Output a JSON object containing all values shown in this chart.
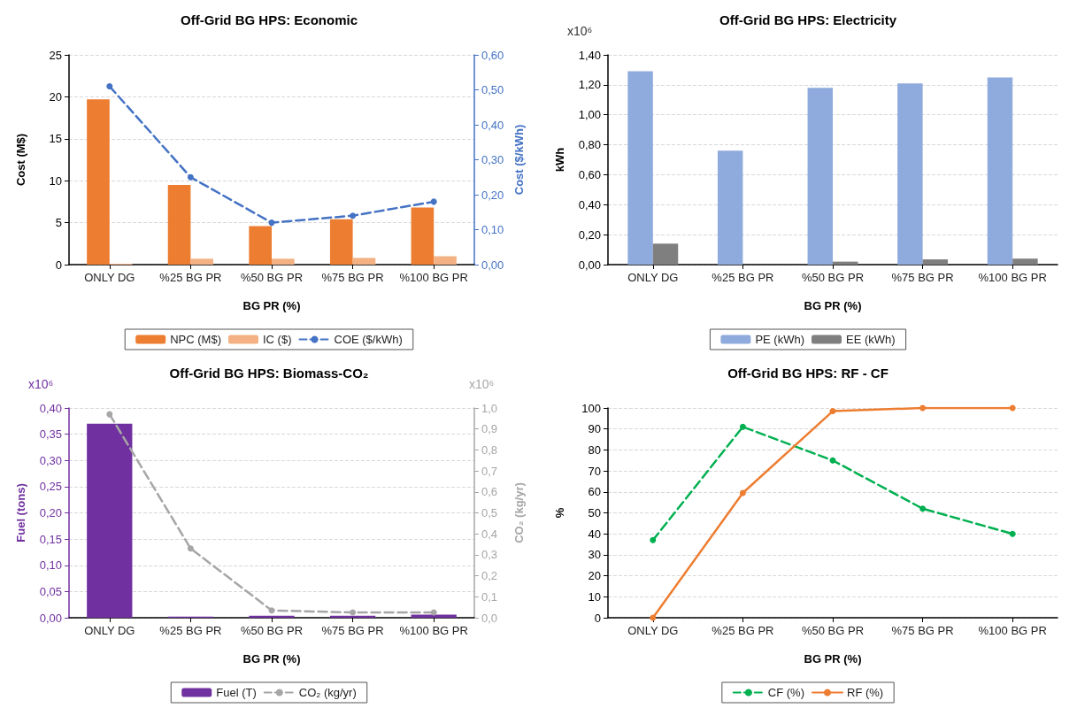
{
  "chart_data": [
    {
      "type": "bar",
      "title": "Off-Grid BG HPS: Economic",
      "xlabel": "BG PR (%)",
      "ylabel": "Cost (M$)",
      "y2label": "Cost ($/kWh)",
      "categories": [
        "ONLY DG",
        "%25 BG PR",
        "%50 BG PR",
        "%75 BG PR",
        "%100 BG PR"
      ],
      "series": [
        {
          "name": "NPC (M$)",
          "color": "#ed7d31",
          "values": [
            19.7,
            9.5,
            4.6,
            5.4,
            6.8
          ]
        },
        {
          "name": "IC ($)",
          "color": "#f4b183",
          "values": [
            0.1,
            0.7,
            0.7,
            0.8,
            1.0
          ]
        },
        {
          "name": "COE ($/kWh)",
          "type": "line",
          "axis": "y2",
          "color": "#4472c4",
          "line_style": "dashed",
          "values": [
            0.51,
            0.25,
            0.12,
            0.14,
            0.18
          ]
        }
      ],
      "ylim": [
        0,
        25
      ],
      "yticks": [
        0,
        5,
        10,
        15,
        20,
        25
      ],
      "y2lim": [
        0,
        0.6
      ],
      "y2ticks": [
        {
          "value": 0,
          "label": "0,00"
        },
        {
          "value": 0.1,
          "label": "0,10"
        },
        {
          "value": 0.2,
          "label": "0,20"
        },
        {
          "value": 0.3,
          "label": "0,30"
        },
        {
          "value": 0.4,
          "label": "0,40"
        },
        {
          "value": 0.5,
          "label": "0,50"
        },
        {
          "value": 0.6,
          "label": "0,60"
        }
      ],
      "grid": "y",
      "legend": "bottom",
      "marker": "circle"
    },
    {
      "type": "bar",
      "title": "Off-Grid BG HPS: Electricity",
      "xlabel": "BG PR (%)",
      "ylabel": "kWh",
      "annotations": [
        "x10⁶"
      ],
      "categories": [
        "ONLY DG",
        "%25 BG PR",
        "%50 BG PR",
        "%75 BG PR",
        "%100 BG PR"
      ],
      "series": [
        {
          "name": "PE (kWh)",
          "color": "#8faadc",
          "values": [
            1.29,
            0.76,
            1.18,
            1.21,
            1.25
          ]
        },
        {
          "name": "EE (kWh)",
          "color": "#7f7f7f",
          "values": [
            0.14,
            0,
            0.02,
            0.035,
            0.04
          ]
        }
      ],
      "ylim": [
        0,
        1.4
      ],
      "yticks": [
        {
          "value": 0,
          "label": "0,00"
        },
        {
          "value": 0.2,
          "label": "0,20"
        },
        {
          "value": 0.4,
          "label": "0,40"
        },
        {
          "value": 0.6,
          "label": "0,60"
        },
        {
          "value": 0.8,
          "label": "0,80"
        },
        {
          "value": 1.0,
          "label": "1,00"
        },
        {
          "value": 1.2,
          "label": "1,20"
        },
        {
          "value": 1.4,
          "label": "1,40"
        }
      ],
      "grid": "y",
      "legend": "bottom"
    },
    {
      "type": "bar",
      "title": "Off-Grid BG HPS: Biomass-CO₂",
      "xlabel": "BG PR (%)",
      "ylabel": "Fuel (tons)",
      "y2label": "CO₂ (kg/yr)",
      "annotations": [
        "x10⁶",
        "x10⁶"
      ],
      "categories": [
        "ONLY DG",
        "%25 BG PR",
        "%50 BG PR",
        "%75 BG PR",
        "%100 BG PR"
      ],
      "series": [
        {
          "name": "Fuel (T)",
          "color": "#7030a0",
          "values": [
            0.37,
            0.002,
            0.004,
            0.004,
            0.006
          ]
        },
        {
          "name": "CO₂ (kg/yr)",
          "type": "line",
          "axis": "y2",
          "color": "#a6a6a6",
          "line_style": "dashed",
          "values": [
            0.97,
            0.33,
            0.035,
            0.025,
            0.025
          ]
        }
      ],
      "ylim": [
        0,
        0.4
      ],
      "yticks": [
        {
          "value": 0,
          "label": "0,00"
        },
        {
          "value": 0.05,
          "label": "0,05"
        },
        {
          "value": 0.1,
          "label": "0,10"
        },
        {
          "value": 0.15,
          "label": "0,15"
        },
        {
          "value": 0.2,
          "label": "0,20"
        },
        {
          "value": 0.25,
          "label": "0,25"
        },
        {
          "value": 0.3,
          "label": "0,30"
        },
        {
          "value": 0.35,
          "label": "0,35"
        },
        {
          "value": 0.4,
          "label": "0,40"
        }
      ],
      "y2lim": [
        0,
        1.0
      ],
      "y2ticks": [
        {
          "value": 0,
          "label": "0,0"
        },
        {
          "value": 0.1,
          "label": "0,1"
        },
        {
          "value": 0.2,
          "label": "0,2"
        },
        {
          "value": 0.3,
          "label": "0,3"
        },
        {
          "value": 0.4,
          "label": "0,4"
        },
        {
          "value": 0.5,
          "label": "0,5"
        },
        {
          "value": 0.6,
          "label": "0,6"
        },
        {
          "value": 0.7,
          "label": "0,7"
        },
        {
          "value": 0.8,
          "label": "0,8"
        },
        {
          "value": 0.9,
          "label": "0,9"
        },
        {
          "value": 1.0,
          "label": "1,0"
        }
      ],
      "grid": "y",
      "legend": "bottom",
      "marker": "circle"
    },
    {
      "type": "line",
      "title": "Off-Grid BG HPS: RF - CF",
      "xlabel": "BG PR (%)",
      "ylabel": "%",
      "categories": [
        "ONLY DG",
        "%25 BG PR",
        "%50 BG PR",
        "%75 BG PR",
        "%100 BG PR"
      ],
      "series": [
        {
          "name": "CF (%)",
          "color": "#00b050",
          "line_style": "dashed",
          "values": [
            37,
            91,
            75,
            52,
            40
          ]
        },
        {
          "name": "RF (%)",
          "color": "#ed7d31",
          "line_style": "solid",
          "values": [
            0,
            59.5,
            98.5,
            100,
            100
          ]
        }
      ],
      "ylim": [
        0,
        100
      ],
      "yticks": [
        0,
        10,
        20,
        30,
        40,
        50,
        60,
        70,
        80,
        90,
        100
      ],
      "grid": "y",
      "legend": "bottom",
      "marker": "circle"
    }
  ]
}
